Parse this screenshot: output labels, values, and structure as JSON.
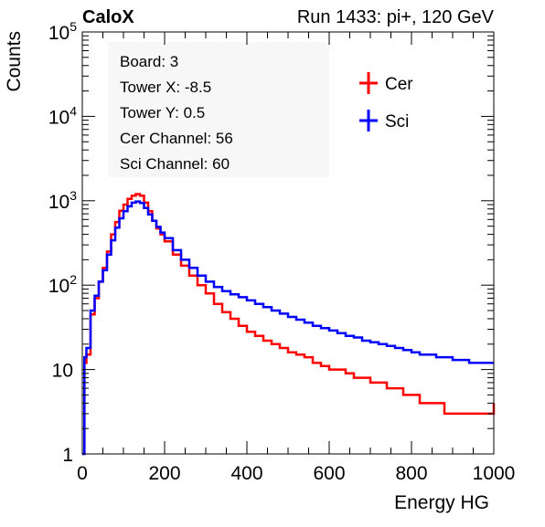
{
  "header": {
    "experiment": "CaloX",
    "run_info": "Run 1433: pi+, 120 GeV"
  },
  "info_box": {
    "lines": [
      "Board: 3",
      "Tower X: -8.5",
      "Tower Y: 0.5",
      "Cer Channel: 56",
      "Sci Channel: 60"
    ]
  },
  "chart_data": {
    "type": "line",
    "title": "",
    "xlabel": "Energy HG",
    "ylabel": "Counts",
    "xlim": [
      0,
      1000
    ],
    "ylim": [
      1,
      100000
    ],
    "y_scale": "log",
    "x_ticks": [
      0,
      200,
      400,
      600,
      800,
      1000
    ],
    "y_ticks": [
      {
        "value": 1,
        "label": "1"
      },
      {
        "value": 10,
        "label": "10"
      },
      {
        "value": 100,
        "label": "10",
        "exp": "2"
      },
      {
        "value": 1000,
        "label": "10",
        "exp": "3"
      },
      {
        "value": 10000,
        "label": "10",
        "exp": "4"
      },
      {
        "value": 100000,
        "label": "10",
        "exp": "5"
      }
    ],
    "grid": false,
    "legend_position": "top-right",
    "series": [
      {
        "name": "Cer",
        "color": "#ff0000",
        "x": [
          0,
          5,
          10,
          20,
          30,
          40,
          50,
          60,
          70,
          80,
          90,
          100,
          110,
          120,
          130,
          140,
          150,
          160,
          170,
          180,
          190,
          200,
          220,
          240,
          260,
          280,
          300,
          320,
          340,
          360,
          380,
          400,
          420,
          440,
          460,
          480,
          500,
          520,
          540,
          560,
          580,
          600,
          620,
          640,
          660,
          680,
          700,
          720,
          740,
          760,
          780,
          800,
          820,
          840,
          860,
          880,
          900,
          920,
          940,
          960,
          980,
          1000
        ],
        "values": [
          1,
          12,
          15,
          45,
          70,
          110,
          160,
          250,
          400,
          560,
          760,
          900,
          1050,
          1150,
          1200,
          1150,
          950,
          750,
          580,
          470,
          400,
          330,
          230,
          170,
          130,
          100,
          80,
          60,
          48,
          40,
          33,
          28,
          25,
          22,
          20,
          18,
          16,
          15,
          14,
          12,
          11,
          10,
          10,
          9,
          8,
          8,
          7,
          7,
          6,
          6,
          5,
          5,
          4,
          4,
          4,
          3,
          3,
          3,
          3,
          3,
          3,
          4
        ]
      },
      {
        "name": "Sci",
        "color": "#0000ff",
        "x": [
          0,
          5,
          10,
          20,
          30,
          40,
          50,
          60,
          70,
          80,
          90,
          100,
          110,
          120,
          130,
          140,
          150,
          160,
          170,
          180,
          190,
          200,
          220,
          240,
          260,
          280,
          300,
          320,
          340,
          360,
          380,
          400,
          420,
          440,
          460,
          480,
          500,
          520,
          540,
          560,
          580,
          600,
          620,
          640,
          660,
          680,
          700,
          720,
          740,
          760,
          780,
          800,
          820,
          840,
          860,
          880,
          900,
          920,
          940,
          960,
          980,
          1000
        ],
        "values": [
          1,
          14,
          18,
          50,
          75,
          110,
          150,
          230,
          340,
          480,
          620,
          750,
          860,
          950,
          980,
          940,
          820,
          690,
          580,
          490,
          420,
          360,
          260,
          200,
          160,
          130,
          110,
          95,
          85,
          78,
          72,
          66,
          60,
          55,
          50,
          46,
          42,
          39,
          36,
          33,
          31,
          29,
          27,
          25,
          24,
          22,
          21,
          20,
          19,
          18,
          17,
          16,
          15,
          15,
          14,
          14,
          13,
          13,
          12,
          12,
          12,
          12
        ]
      }
    ]
  }
}
